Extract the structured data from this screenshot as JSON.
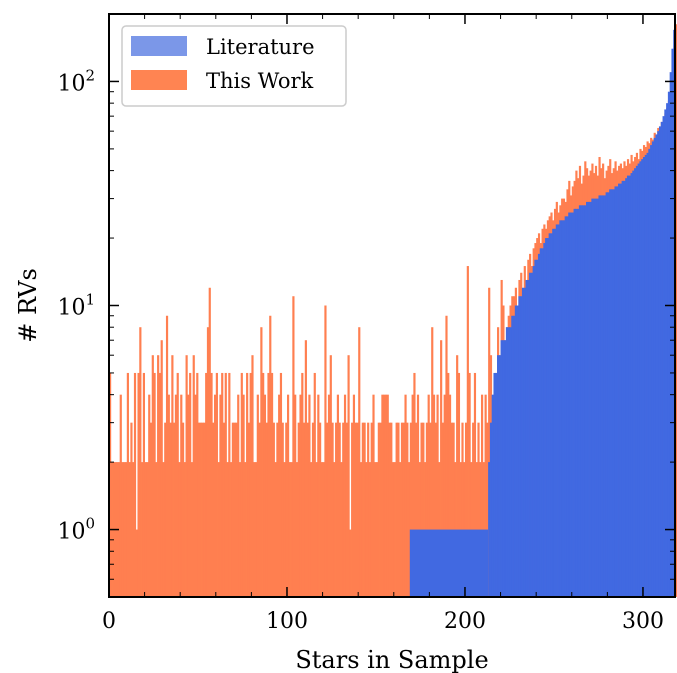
{
  "chart_data": {
    "type": "bar",
    "subtype": "stacked-histogram",
    "title": "",
    "xlabel": "Stars in Sample",
    "ylabel": "# RVs",
    "xlim": [
      0,
      318
    ],
    "ylim": [
      0.5,
      200
    ],
    "yscale": "log",
    "x_ticks": [
      {
        "value": 0,
        "label": "0"
      },
      {
        "value": 100,
        "label": "100"
      },
      {
        "value": 200,
        "label": "200"
      },
      {
        "value": 300,
        "label": "300"
      }
    ],
    "y_ticks": [
      {
        "value": 1,
        "base": "10",
        "exp": "0"
      },
      {
        "value": 10,
        "base": "10",
        "exp": "1"
      },
      {
        "value": 100,
        "base": "10",
        "exp": "2"
      }
    ],
    "grid": false,
    "legend": {
      "placement": "top-left",
      "entries": [
        {
          "label": "Literature",
          "color": "#7b97e8"
        },
        {
          "label": "This Work",
          "color": "#ff8452"
        }
      ]
    },
    "colors": {
      "literature": "#4169e1",
      "this_work": "#ff7f50"
    },
    "series": [
      {
        "name": "Literature",
        "segments": [
          {
            "start": 169,
            "end": 213,
            "value": 1
          },
          {
            "start": 213,
            "count": 105,
            "values": [
              2,
              3,
              4,
              5,
              5,
              6,
              6,
              7,
              7,
              7,
              8,
              8,
              8,
              9,
              9,
              10,
              10,
              11,
              11,
              12,
              12,
              13,
              13,
              14,
              14,
              15,
              16,
              16,
              17,
              18,
              18,
              19,
              20,
              20,
              21,
              21,
              22,
              22,
              23,
              23,
              24,
              24,
              24,
              25,
              25,
              26,
              26,
              26,
              27,
              27,
              27,
              28,
              28,
              28,
              28,
              29,
              29,
              29,
              30,
              30,
              30,
              30,
              31,
              31,
              31,
              31,
              32,
              32,
              33,
              33,
              33,
              34,
              34,
              35,
              35,
              36,
              36,
              37,
              38,
              38,
              39,
              40,
              41,
              42,
              43,
              44,
              45,
              46,
              47,
              48,
              50,
              52,
              54,
              56,
              58,
              60,
              63,
              66,
              70,
              75,
              80,
              90,
              110,
              140,
              170
            ]
          }
        ]
      },
      {
        "name": "This Work",
        "bins_start": 0,
        "bin_width": 1,
        "total_values": [
          5,
          2,
          2,
          2,
          2,
          2,
          4,
          2,
          2,
          2,
          5,
          2,
          3,
          2,
          5,
          1,
          5,
          8,
          2,
          5,
          2,
          2,
          4,
          3,
          6,
          5,
          2,
          6,
          5,
          7,
          2,
          3,
          9,
          4,
          3,
          6,
          3,
          4,
          5,
          2,
          4,
          3,
          2,
          6,
          4,
          5,
          2,
          6,
          4,
          5,
          3,
          3,
          3,
          3,
          5,
          8,
          12,
          5,
          3,
          4,
          5,
          2,
          4,
          5,
          3,
          5,
          2,
          5,
          2,
          3,
          3,
          3,
          4,
          2,
          5,
          4,
          2,
          5,
          3,
          5,
          6,
          2,
          2,
          4,
          3,
          8,
          5,
          4,
          3,
          5,
          9,
          5,
          3,
          2,
          3,
          4,
          5,
          3,
          2,
          3,
          4,
          2,
          2,
          11,
          4,
          2,
          3,
          4,
          5,
          3,
          7,
          3,
          4,
          2,
          3,
          5,
          2,
          4,
          3,
          2,
          2,
          10,
          3,
          4,
          6,
          3,
          2,
          3,
          4,
          3,
          2,
          3,
          4,
          3,
          6,
          1,
          3,
          4,
          3,
          3,
          8,
          2,
          3,
          3,
          2,
          3,
          2,
          3,
          4,
          2,
          2,
          3,
          3,
          4,
          4,
          4,
          4,
          3,
          3,
          2,
          2,
          3,
          3,
          2,
          3,
          3,
          4,
          3,
          2,
          3,
          4,
          5,
          3,
          4,
          2,
          3,
          3,
          2,
          3,
          4,
          3,
          8,
          4,
          3,
          4,
          2,
          7,
          3,
          4,
          9,
          5,
          4,
          3,
          3,
          2,
          6,
          5,
          2,
          3,
          2,
          3,
          15,
          5,
          2,
          3,
          5,
          2,
          3,
          2,
          4,
          2,
          4,
          3,
          12,
          6,
          2,
          3,
          5,
          8,
          6,
          13,
          10,
          7,
          8,
          9,
          10,
          11,
          11,
          12,
          9,
          13,
          14,
          11,
          15,
          12,
          16,
          17,
          15,
          18,
          19,
          20,
          21,
          19,
          22,
          23,
          22,
          24,
          25,
          26,
          24,
          27,
          29,
          26,
          28,
          30,
          30,
          29,
          33,
          36,
          31,
          34,
          36,
          40,
          37,
          42,
          35,
          38,
          44,
          41,
          38,
          40,
          43,
          39,
          42,
          38,
          46,
          41,
          43,
          37,
          40,
          42,
          45,
          39,
          41,
          44,
          40,
          42,
          43,
          41,
          44,
          42,
          45,
          43,
          47,
          44,
          46,
          48,
          45,
          50,
          49,
          52,
          51,
          54,
          53,
          56,
          55,
          59,
          58,
          62,
          63,
          66,
          68,
          72,
          76,
          82,
          90,
          110,
          140,
          180
        ]
      }
    ]
  }
}
